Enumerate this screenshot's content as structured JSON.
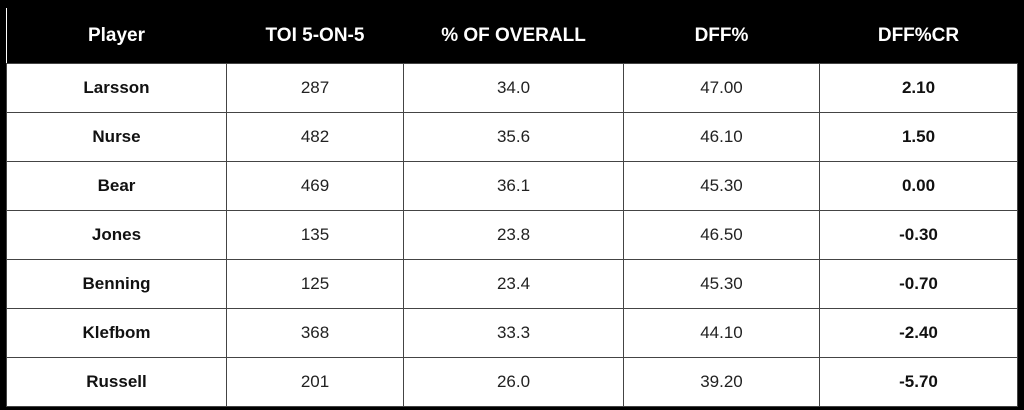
{
  "table": {
    "header": [
      "Player",
      "TOI 5-ON-5",
      "% OF OVERALL",
      "DFF%",
      "DFF%CR"
    ],
    "rows": [
      [
        "Larsson",
        "287",
        "34.0",
        "47.00",
        "2.10"
      ],
      [
        "Nurse",
        "482",
        "35.6",
        "46.10",
        "1.50"
      ],
      [
        "Bear",
        "469",
        "36.1",
        "45.30",
        "0.00"
      ],
      [
        "Jones",
        "135",
        "23.8",
        "46.50",
        "-0.30"
      ],
      [
        "Benning",
        "125",
        "23.4",
        "45.30",
        "-0.70"
      ],
      [
        "Klefbom",
        "368",
        "33.3",
        "44.10",
        "-2.40"
      ],
      [
        "Russell",
        "201",
        "26.0",
        "39.20",
        "-5.70"
      ]
    ]
  }
}
